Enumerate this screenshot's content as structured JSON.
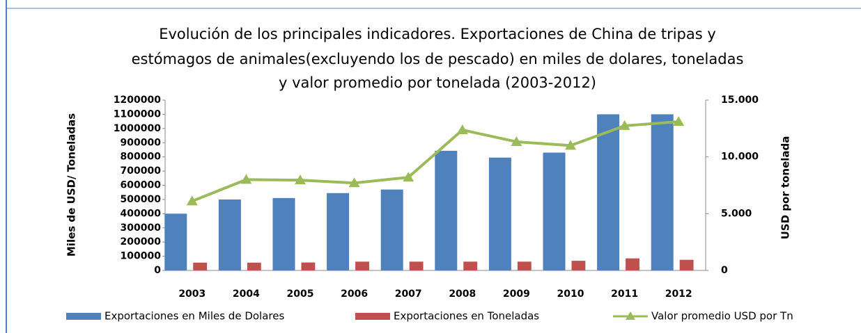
{
  "chart_data": {
    "type": "bar",
    "title": [
      "Evolución de los principales indicadores.  Exportaciones  de China de tripas y",
      "estómagos de animales(excluyendo los de pescado) en miles de dolares, toneladas",
      "y valor promedio por tonelada (2003-2012)"
    ],
    "ylabel": "Miles de USD/ Toneladas",
    "y2label": "USD por tonelada",
    "categories": [
      "2003",
      "2004",
      "2005",
      "2006",
      "2007",
      "2008",
      "2009",
      "2010",
      "2011",
      "2012"
    ],
    "series": [
      {
        "name": "Exportaciones en Miles de Dolares",
        "color": "#4f81bd",
        "values": [
          400000,
          500000,
          510000,
          545000,
          570000,
          843000,
          795000,
          830000,
          1100000,
          1100000
        ]
      },
      {
        "name": "Exportaciones en Toneladas",
        "color": "#c0504d",
        "values": [
          55000,
          55000,
          56000,
          62000,
          62000,
          62000,
          62000,
          68000,
          85000,
          75000
        ]
      },
      {
        "name": "Valor promedio USD por Tn",
        "color": "#9bbb59",
        "axis": "y2",
        "values": [
          6100,
          8000,
          7950,
          7700,
          8200,
          12370,
          11330,
          11000,
          12740,
          13100
        ]
      }
    ],
    "ylim": [
      0,
      1200000
    ],
    "yticks": [
      0,
      100000,
      200000,
      300000,
      400000,
      500000,
      600000,
      700000,
      800000,
      900000,
      1000000,
      1100000,
      1200000
    ],
    "y2lim": [
      0,
      15000
    ],
    "y2ticks": [
      0,
      {
        "value": 5000,
        "label": "5.000"
      },
      {
        "value": 10000,
        "label": "10.000"
      },
      {
        "value": 15000,
        "label": "15.000"
      }
    ],
    "legend": "bottom",
    "grid": false
  }
}
